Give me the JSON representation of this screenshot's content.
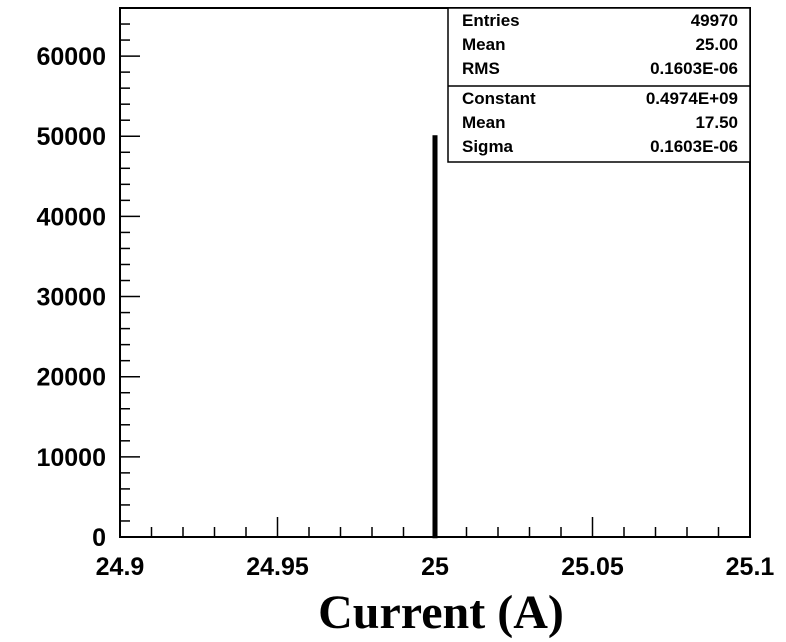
{
  "chart_data": {
    "type": "bar",
    "title": "",
    "xlabel": "Current (A)",
    "ylabel": "",
    "xlim": [
      24.9,
      25.1
    ],
    "ylim": [
      0,
      66000
    ],
    "grid": false,
    "x_ticks": [
      "24.9",
      "24.95",
      "25",
      "25.05",
      "25.1"
    ],
    "y_ticks": [
      "0",
      "10000",
      "20000",
      "30000",
      "40000",
      "50000",
      "60000"
    ],
    "bins": [
      {
        "low": 24.9996,
        "high": 25.0004,
        "value": 49970
      }
    ],
    "stats_box": {
      "placement": "top-right",
      "rows": [
        {
          "label": "Entries",
          "value": "49970"
        },
        {
          "label": "Mean",
          "value": "25.00"
        },
        {
          "label": "RMS",
          "value": "0.1603E-06"
        }
      ],
      "fit_rows": [
        {
          "label": "Constant",
          "value": "0.4974E+09"
        },
        {
          "label": "Mean",
          "value": "17.50"
        },
        {
          "label": "Sigma",
          "value": "0.1603E-06"
        }
      ]
    }
  }
}
